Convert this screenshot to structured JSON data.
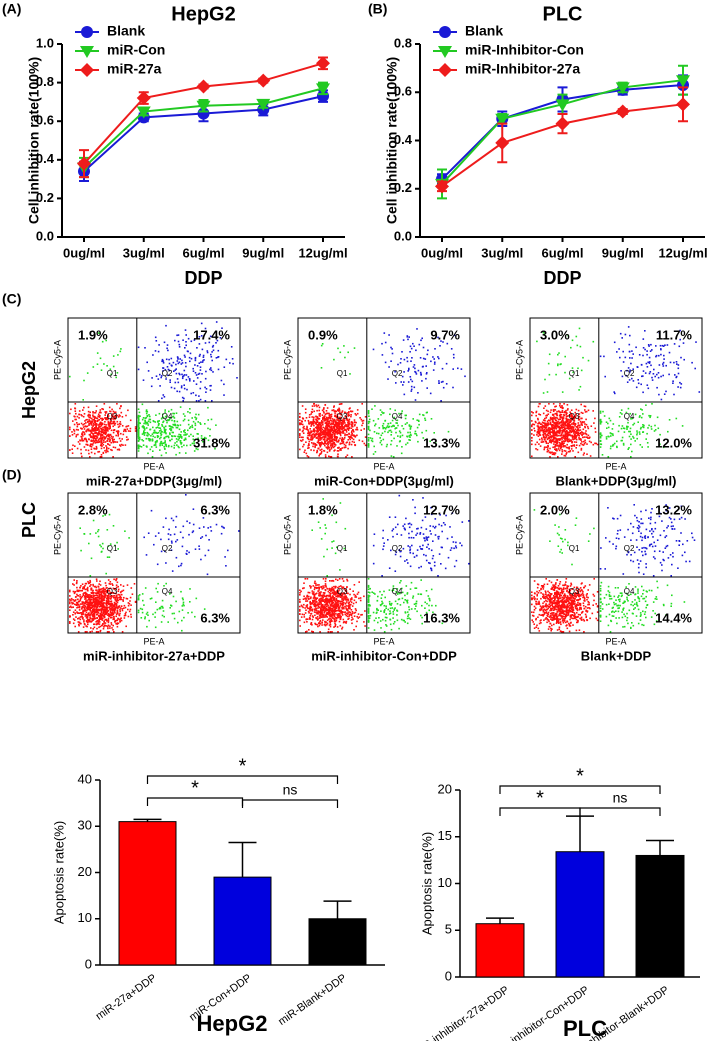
{
  "chart_data": [
    {
      "type": "line",
      "panel": "(A)",
      "title": "HepG2",
      "xlabel": "DDP",
      "ylabel": "Cell inhibition rate(100%)",
      "categories": [
        "0ug/ml",
        "3ug/ml",
        "6ug/ml",
        "9ug/ml",
        "12ug/ml"
      ],
      "ylim": [
        0,
        1
      ],
      "yticks": [
        {
          "value": 0,
          "label": "0.0"
        },
        0.2,
        0.4,
        0.6,
        0.8,
        {
          "value": 1,
          "label": "1.0"
        }
      ],
      "series": [
        {
          "name": "Blank",
          "color": "#1a1ad6",
          "marker": "circle",
          "values": [
            0.34,
            0.62,
            0.64,
            0.66,
            0.73
          ],
          "errors": [
            0.05,
            0.02,
            0.04,
            0.03,
            0.03
          ]
        },
        {
          "name": "miR-Con",
          "color": "#22c922",
          "marker": "triangle-down",
          "values": [
            0.36,
            0.65,
            0.68,
            0.69,
            0.77
          ],
          "errors": [
            0.05,
            0.02,
            0.03,
            0.02,
            0.03
          ]
        },
        {
          "name": "miR-27a",
          "color": "#ee1c1c",
          "marker": "diamond",
          "values": [
            0.38,
            0.72,
            0.78,
            0.81,
            0.9
          ],
          "errors": [
            0.07,
            0.03,
            0.01,
            0.01,
            0.03
          ]
        }
      ]
    },
    {
      "type": "line",
      "panel": "(B)",
      "title": "PLC",
      "xlabel": "DDP",
      "ylabel": "Cell inhibition rate(100%)",
      "categories": [
        "0ug/ml",
        "3ug/ml",
        "6ug/ml",
        "9ug/ml",
        "12ug/ml"
      ],
      "ylim": [
        0,
        0.8
      ],
      "yticks": [
        {
          "value": 0,
          "label": "0.0"
        },
        0.2,
        0.4,
        0.6,
        0.8
      ],
      "series": [
        {
          "name": "Blank",
          "color": "#1a1ad6",
          "marker": "circle",
          "values": [
            0.24,
            0.49,
            0.57,
            0.61,
            0.63
          ],
          "errors": [
            0.02,
            0.03,
            0.05,
            0.02,
            0.04
          ]
        },
        {
          "name": "miR-Inhibitor-Con",
          "color": "#22c922",
          "marker": "triangle-down",
          "values": [
            0.22,
            0.49,
            0.55,
            0.62,
            0.65
          ],
          "errors": [
            0.06,
            0.02,
            0.04,
            0.02,
            0.06
          ]
        },
        {
          "name": "miR-Inhibitor-27a",
          "color": "#ee1c1c",
          "marker": "diamond",
          "values": [
            0.21,
            0.39,
            0.47,
            0.52,
            0.55
          ],
          "errors": [
            0.02,
            0.08,
            0.04,
            0.01,
            0.07
          ]
        }
      ]
    },
    {
      "type": "quadrant",
      "panel": "(C)",
      "row_label": "HepG2",
      "label": "miR-27a+DDP(3μg/ml)",
      "xlabel": "PE-A",
      "ylabel": "PE-Cy5-A",
      "quadrant_names": [
        "Q1",
        "Q2",
        "Q3",
        "Q4"
      ],
      "values": [
        1.9,
        17.4,
        31.8
      ],
      "value_labels": [
        "1.9%",
        "17.4%",
        "31.8%"
      ]
    },
    {
      "type": "quadrant",
      "label": "miR-Con+DDP(3μg/ml)",
      "xlabel": "PE-A",
      "ylabel": "PE-Cy5-A",
      "quadrant_names": [
        "Q1",
        "Q2",
        "Q3",
        "Q4"
      ],
      "values": [
        0.9,
        9.7,
        13.3
      ],
      "value_labels": [
        "0.9%",
        "9.7%",
        "13.3%"
      ]
    },
    {
      "type": "quadrant",
      "label": "Blank+DDP(3μg/ml)",
      "xlabel": "PE-A",
      "ylabel": "PE-Cy5-A",
      "quadrant_names": [
        "Q1",
        "Q2",
        "Q3",
        "Q4"
      ],
      "values": [
        3.0,
        11.7,
        12.0
      ],
      "value_labels": [
        "3.0%",
        "11.7%",
        "12.0%"
      ]
    },
    {
      "type": "quadrant",
      "panel": "(D)",
      "row_label": "PLC",
      "label": "miR-inhibitor-27a+DDP",
      "xlabel": "PE-A",
      "ylabel": "PE-Cy5-A",
      "quadrant_names": [
        "Q1",
        "Q2",
        "Q3",
        "Q4"
      ],
      "values": [
        2.8,
        6.3,
        6.3
      ],
      "value_labels": [
        "2.8%",
        "6.3%",
        "6.3%"
      ]
    },
    {
      "type": "quadrant",
      "label": "miR-inhibitor-Con+DDP",
      "xlabel": "PE-A",
      "ylabel": "PE-Cy5-A",
      "quadrant_names": [
        "Q1",
        "Q2",
        "Q3",
        "Q4"
      ],
      "values": [
        1.8,
        12.7,
        16.3
      ],
      "value_labels": [
        "1.8%",
        "12.7%",
        "16.3%"
      ]
    },
    {
      "type": "quadrant",
      "label": "Blank+DDP",
      "xlabel": "PE-A",
      "ylabel": "PE-Cy5-A",
      "quadrant_names": [
        "Q1",
        "Q2",
        "Q3",
        "Q4"
      ],
      "values": [
        2.0,
        13.2,
        14.4
      ],
      "value_labels": [
        "2.0%",
        "13.2%",
        "14.4%"
      ]
    },
    {
      "type": "bar",
      "title": "HepG2",
      "ylabel": "Apoptosis rate(%)",
      "categories": [
        "miR-27a+DDP",
        "miR-Con+DDP",
        "miR-Blank+DDP"
      ],
      "colors": [
        "#ff0000",
        "#0000dd",
        "#000000"
      ],
      "values": [
        31,
        19,
        10
      ],
      "errors": [
        0.5,
        7.5,
        3.8
      ],
      "ylim": [
        0,
        40
      ],
      "yticks": [
        0,
        10,
        20,
        30,
        40
      ],
      "annotations": [
        {
          "label": "*"
        },
        {
          "label": "*"
        },
        {
          "label": "ns"
        }
      ]
    },
    {
      "type": "bar",
      "title": "PLC",
      "ylabel": "Apoptosis rate(%)",
      "categories": [
        "miR-inhibitor-27a+DDP",
        "miR-inhibitor-Con+DDP",
        "miR-inhibitor-Blank+DDP"
      ],
      "colors": [
        "#ff0000",
        "#0000dd",
        "#000000"
      ],
      "values": [
        5.7,
        13.4,
        13.0
      ],
      "errors": [
        0.6,
        3.8,
        1.6
      ],
      "ylim": [
        0,
        20
      ],
      "yticks": [
        0,
        5,
        10,
        15,
        20
      ],
      "annotations": [
        {
          "label": "*"
        },
        {
          "label": "*"
        },
        {
          "label": "ns"
        }
      ]
    }
  ]
}
